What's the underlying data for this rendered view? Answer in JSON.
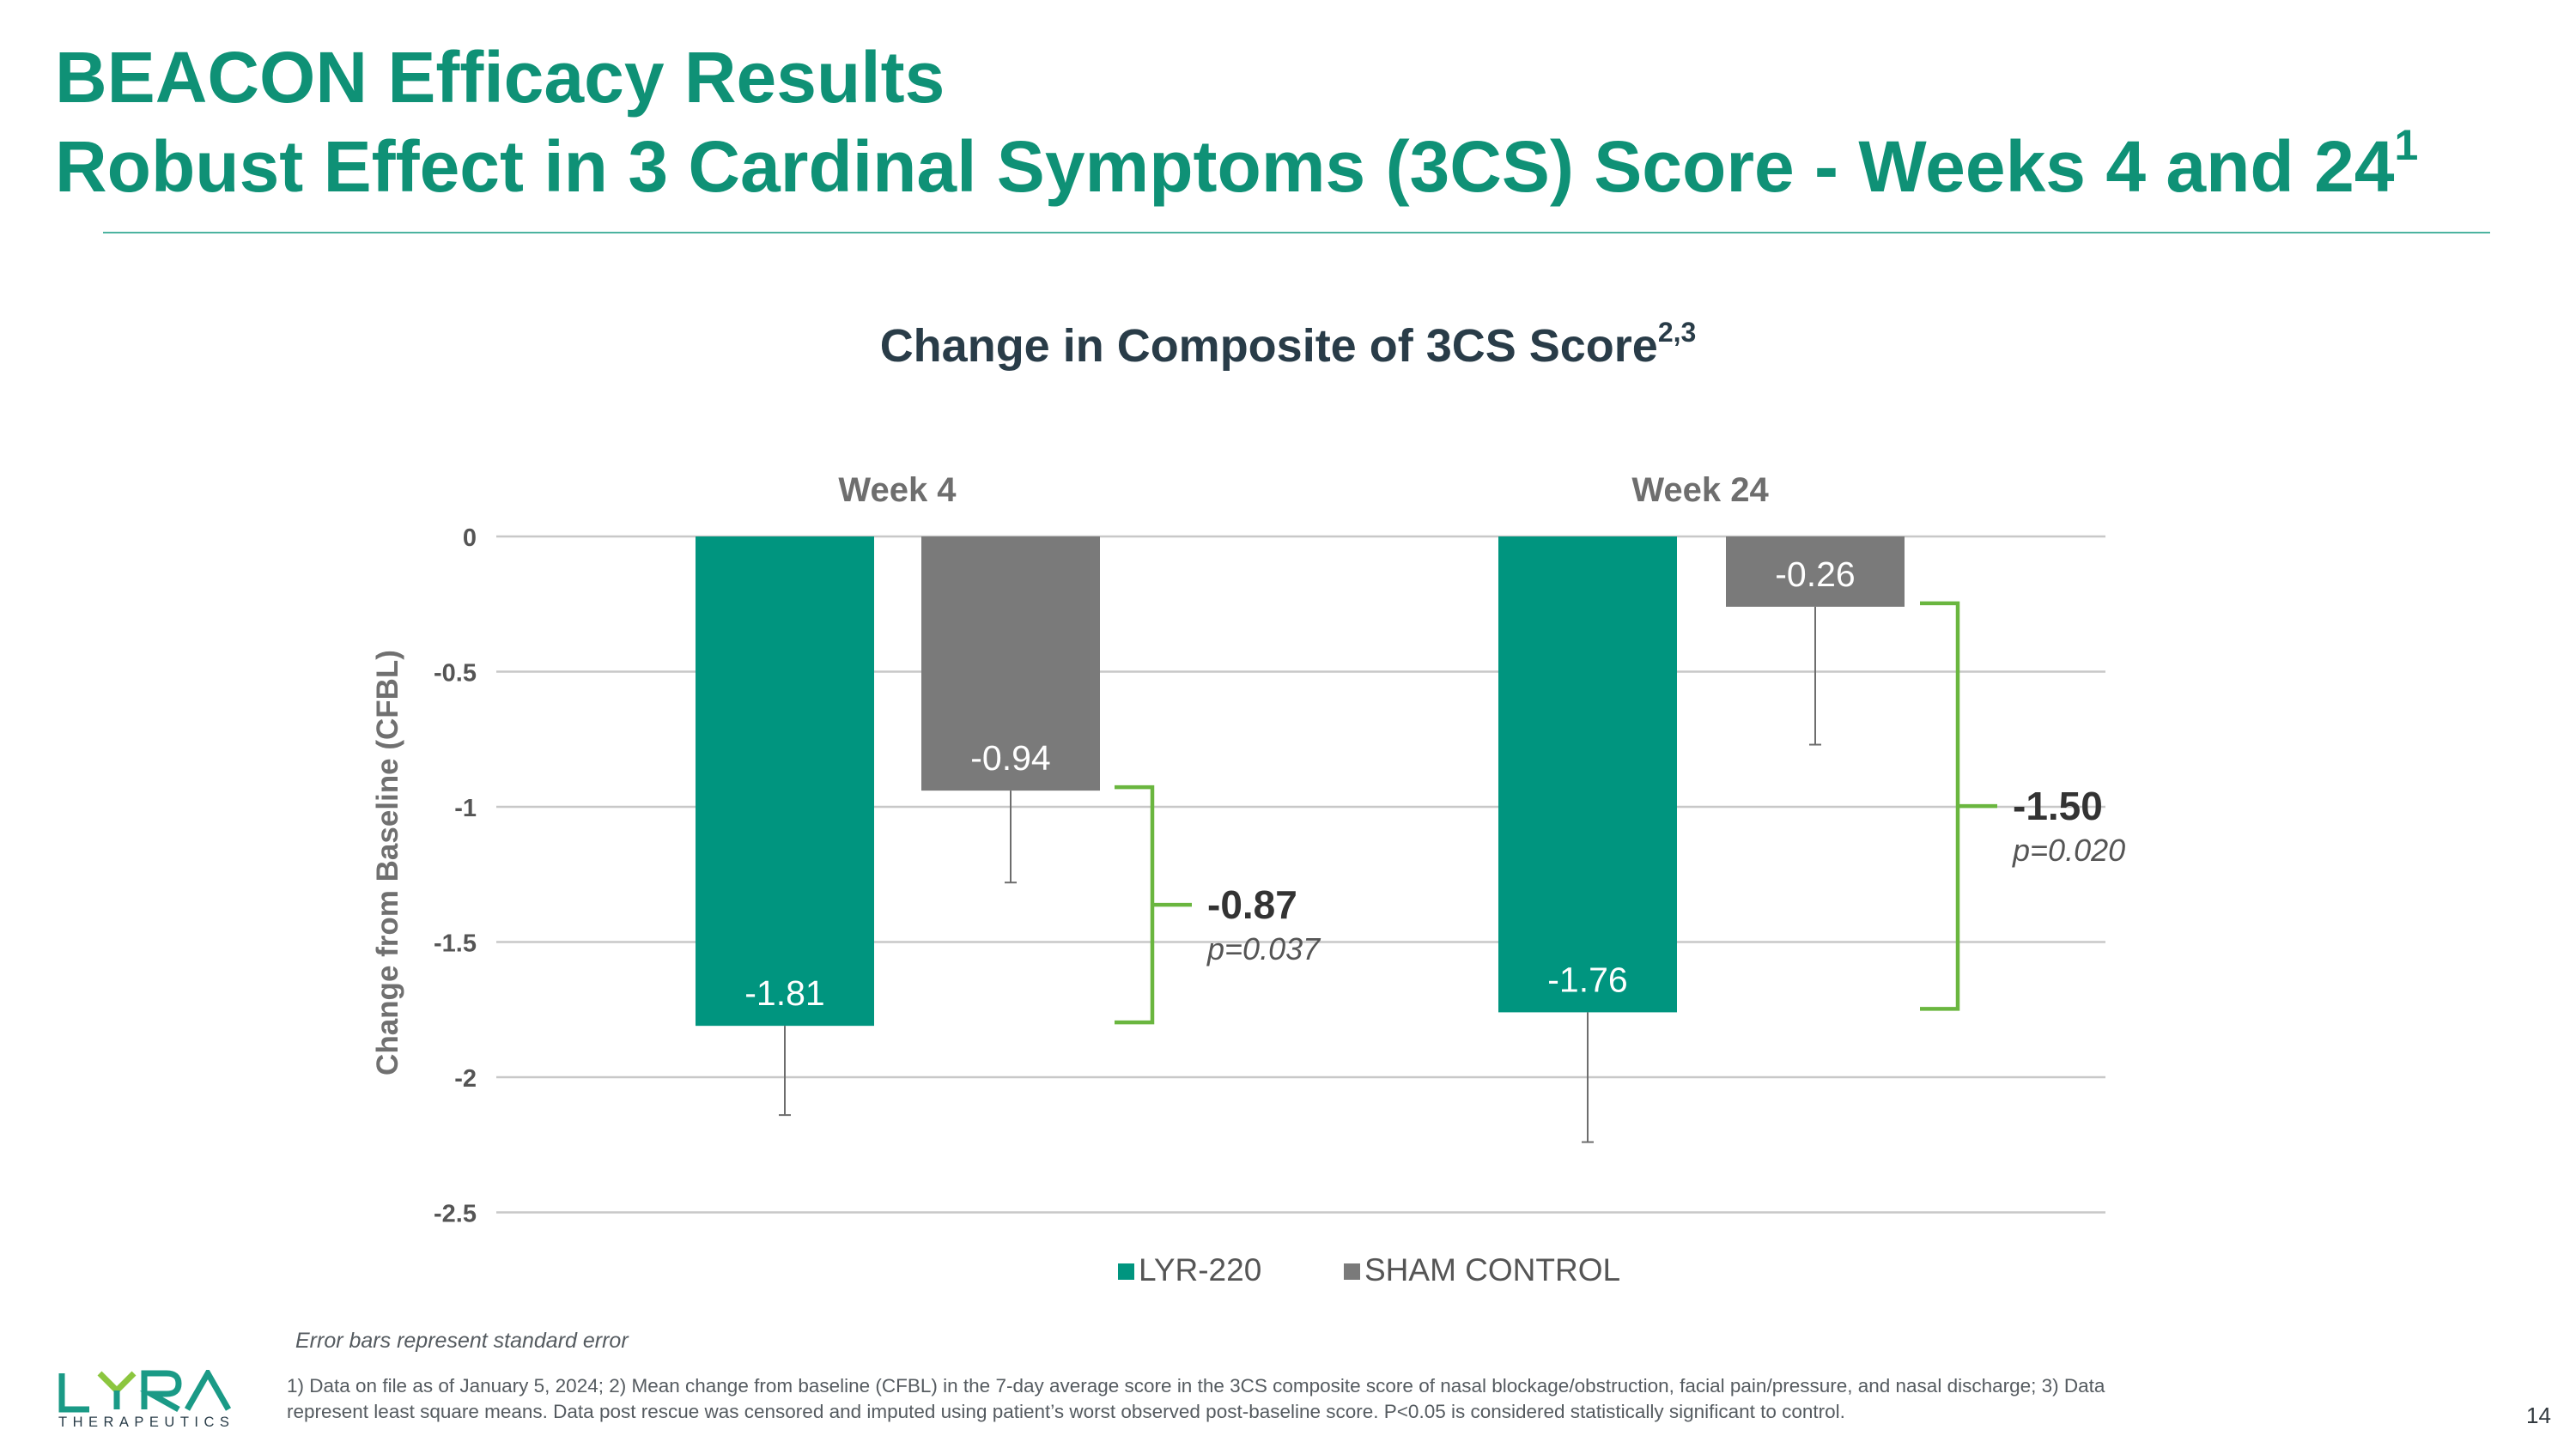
{
  "slide": {
    "title_line1": "BEACON Efficacy Results",
    "title_line2": "Robust Effect in 3 Cardinal Symptoms (3CS) Score - Weeks 4 and 24",
    "title_line2_sup": "1",
    "page_number": "14"
  },
  "chart_data": {
    "type": "bar",
    "title": "Change in Composite of 3CS Score",
    "title_sup": "2,3",
    "ylabel": "Change from Baseline (CFBL)",
    "xlabel": "",
    "ylim": [
      -2.5,
      0
    ],
    "yticks": [
      0,
      -0.5,
      -1,
      -1.5,
      -2,
      -2.5
    ],
    "ytick_labels": [
      "0",
      "-0.5",
      "-1",
      "-1.5",
      "-2",
      "-2.5"
    ],
    "grid": true,
    "legend_position": "bottom",
    "categories": [
      "Week 4",
      "Week 24"
    ],
    "series": [
      {
        "name": "LYR-220",
        "color": "#00957f",
        "values": [
          -1.81,
          -1.76
        ],
        "labels": [
          "-1.81",
          "-1.76"
        ],
        "error_bar_ends": [
          -2.14,
          -2.24
        ]
      },
      {
        "name": "SHAM CONTROL",
        "color": "#7a7a7a",
        "values": [
          -0.94,
          -0.26
        ],
        "labels": [
          "-0.94",
          "-0.26"
        ],
        "error_bar_ends": [
          -1.28,
          -0.77
        ]
      }
    ],
    "annotations": [
      {
        "category": "Week 4",
        "difference": "-0.87",
        "p_value": "p=0.037"
      },
      {
        "category": "Week 24",
        "difference": "-1.50",
        "p_value": "p=0.020"
      }
    ],
    "bracket_color": "#6ab63f",
    "note": "Error bars represent standard error"
  },
  "footnotes": {
    "text": "1) Data on file as of January 5, 2024; 2) Mean change from baseline (CFBL) in the 7-day average score in the 3CS composite score of nasal blockage/obstruction, facial pain/pressure, and nasal discharge; 3) Data represent least square means. Data post rescue was censored and imputed using patient’s worst observed post-baseline score. P<0.05 is considered statistically significant to control."
  },
  "logo": {
    "name": "LYRA",
    "subtitle": "THERAPEUTICS",
    "color_primary": "#1a9a86",
    "color_accent": "#8cc63f"
  }
}
